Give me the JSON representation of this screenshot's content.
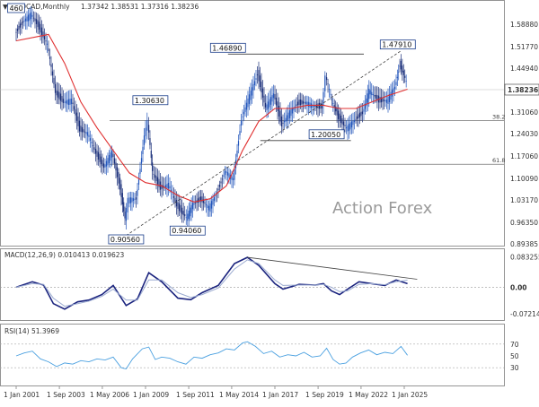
{
  "symbol_header": {
    "symbol": "USDCAD,Monthly",
    "ohlc": "1.37342 1.38531 1.37316 1.38236"
  },
  "watermark": "Action Forex",
  "colors": {
    "bull": "#2255bb",
    "bear": "#1a2f7a",
    "ma": "#e03030",
    "macd": "#1a237e",
    "signal": "#9aaad0",
    "rsi": "#4aa0e0",
    "guide": "#444444"
  },
  "chart_data": [
    {
      "type": "candlestick",
      "name": "price",
      "title": "USDCAD,Monthly",
      "y_ticks": [
        "1.58880",
        "1.51770",
        "1.44940",
        "1.38236",
        "1.31060",
        "1.24030",
        "1.17060",
        "1.10090",
        "1.03170",
        "0.96350",
        "0.89385"
      ],
      "ylim": [
        0.88,
        1.62
      ],
      "current_price": "1.38236",
      "level_labels": [
        {
          "label": "1.46890",
          "x": 2014.1,
          "value": 1.4689
        },
        {
          "label": "1.47910",
          "x": 2024.6,
          "value": 1.4791
        },
        {
          "label": "1.30630",
          "x": 2009.3,
          "value": 1.3063
        },
        {
          "label": "1.20050",
          "x": 2020.2,
          "value": 1.2005
        },
        {
          "label": "0.94060",
          "x": 2011.6,
          "value": 0.9406
        },
        {
          "label": "0.90560",
          "x": 2007.8,
          "value": 0.9056
        },
        {
          "label": "460",
          "x": 2001.0,
          "value": 1.6
        }
      ],
      "horizontal_levels": [
        {
          "value": 1.4689,
          "x_start": 2014.1,
          "x_end": 2022.5
        },
        {
          "value": 1.2005,
          "x_start": 2016.1,
          "x_end": 2021.7
        }
      ],
      "fib_levels": [
        {
          "label": "38.2",
          "value": 1.2628
        },
        {
          "label": "61.8",
          "value": 1.127
        }
      ],
      "trendline": {
        "x_start": 2007.8,
        "y_start": 0.9056,
        "x_end": 2024.8,
        "y_end": 1.479
      },
      "ohlc_points": [
        [
          2001.0,
          1.5321
        ],
        [
          2001.5,
          1.5699
        ],
        [
          2002.0,
          1.5931
        ],
        [
          2002.5,
          1.5504
        ],
        [
          2003.0,
          1.4972
        ],
        [
          2003.5,
          1.3491
        ],
        [
          2004.0,
          1.3197
        ],
        [
          2004.5,
          1.3253
        ],
        [
          2005.0,
          1.2351
        ],
        [
          2005.5,
          1.2223
        ],
        [
          2006.0,
          1.1612
        ],
        [
          2006.5,
          1.1183
        ],
        [
          2007.0,
          1.1652
        ],
        [
          2007.5,
          1.0544
        ],
        [
          2007.8,
          0.9581
        ],
        [
          2008.0,
          1.0174
        ],
        [
          2008.5,
          1.0197
        ],
        [
          2009.0,
          1.2173
        ],
        [
          2009.2,
          1.2598
        ],
        [
          2009.5,
          1.1014
        ],
        [
          2010.0,
          1.0535
        ],
        [
          2010.5,
          1.0638
        ],
        [
          2011.0,
          0.9994
        ],
        [
          2011.6,
          0.9602
        ],
        [
          2012.0,
          1.0037
        ],
        [
          2012.5,
          1.0179
        ],
        [
          2013.0,
          0.9916
        ],
        [
          2013.5,
          1.0404
        ],
        [
          2014.0,
          1.1064
        ],
        [
          2014.5,
          1.0795
        ],
        [
          2015.0,
          1.2675
        ],
        [
          2016.0,
          1.4081
        ],
        [
          2016.5,
          1.3021
        ],
        [
          2017.0,
          1.3441
        ],
        [
          2017.5,
          1.2494
        ],
        [
          2018.0,
          1.2883
        ],
        [
          2018.5,
          1.3156
        ],
        [
          2019.0,
          1.3189
        ],
        [
          2019.5,
          1.3062
        ],
        [
          2020.0,
          1.3049
        ],
        [
          2020.2,
          1.4021
        ],
        [
          2020.6,
          1.3232
        ],
        [
          2021.0,
          1.2723
        ],
        [
          2021.5,
          1.2386
        ],
        [
          2022.0,
          1.2634
        ],
        [
          2022.5,
          1.2865
        ],
        [
          2022.9,
          1.3554
        ],
        [
          2023.5,
          1.3243
        ],
        [
          2024.0,
          1.3245
        ],
        [
          2024.5,
          1.3675
        ],
        [
          2024.8,
          1.4377
        ],
        [
          2025.2,
          1.3823
        ]
      ],
      "ma_points": [
        [
          2001.0,
          1.51
        ],
        [
          2003.0,
          1.53
        ],
        [
          2004.0,
          1.44
        ],
        [
          2005.0,
          1.32
        ],
        [
          2006.0,
          1.24
        ],
        [
          2007.0,
          1.17
        ],
        [
          2008.0,
          1.1
        ],
        [
          2009.0,
          1.07
        ],
        [
          2010.0,
          1.06
        ],
        [
          2011.0,
          1.03
        ],
        [
          2012.0,
          1.01
        ],
        [
          2013.0,
          1.02
        ],
        [
          2014.0,
          1.06
        ],
        [
          2015.0,
          1.17
        ],
        [
          2016.0,
          1.26
        ],
        [
          2017.0,
          1.3
        ],
        [
          2018.0,
          1.3
        ],
        [
          2019.0,
          1.31
        ],
        [
          2020.0,
          1.31
        ],
        [
          2021.0,
          1.3
        ],
        [
          2022.0,
          1.3
        ],
        [
          2023.0,
          1.32
        ],
        [
          2024.0,
          1.34
        ],
        [
          2025.2,
          1.36
        ]
      ]
    },
    {
      "type": "line",
      "name": "macd",
      "title": "MACD(12,26,9) 0.010413 0.019623",
      "y_ticks": [
        "0.083255",
        "0.00",
        "-0.072148"
      ],
      "ylim": [
        -0.085,
        0.092
      ],
      "series": [
        {
          "name": "MACD",
          "points": [
            [
              2001.0,
              0.0
            ],
            [
              2002.0,
              0.015
            ],
            [
              2002.7,
              0.006
            ],
            [
              2003.3,
              -0.045
            ],
            [
              2004.0,
              -0.06
            ],
            [
              2004.8,
              -0.04
            ],
            [
              2005.5,
              -0.035
            ],
            [
              2006.3,
              -0.02
            ],
            [
              2007.0,
              0.005
            ],
            [
              2007.8,
              -0.05
            ],
            [
              2008.5,
              -0.032
            ],
            [
              2009.2,
              0.04
            ],
            [
              2010.0,
              0.015
            ],
            [
              2011.0,
              -0.03
            ],
            [
              2011.8,
              -0.034
            ],
            [
              2012.5,
              -0.015
            ],
            [
              2013.5,
              0.005
            ],
            [
              2014.5,
              0.065
            ],
            [
              2015.3,
              0.082
            ],
            [
              2016.0,
              0.06
            ],
            [
              2017.0,
              0.01
            ],
            [
              2017.5,
              -0.005
            ],
            [
              2018.5,
              0.008
            ],
            [
              2019.5,
              0.006
            ],
            [
              2020.0,
              0.01
            ],
            [
              2020.5,
              -0.01
            ],
            [
              2021.0,
              -0.02
            ],
            [
              2021.5,
              -0.005
            ],
            [
              2022.2,
              0.015
            ],
            [
              2023.0,
              0.01
            ],
            [
              2023.8,
              0.005
            ],
            [
              2024.5,
              0.02
            ],
            [
              2025.2,
              0.01
            ]
          ]
        },
        {
          "name": "Signal",
          "points": [
            [
              2001.0,
              0.0
            ],
            [
              2002.0,
              0.01
            ],
            [
              2002.7,
              0.008
            ],
            [
              2003.3,
              -0.03
            ],
            [
              2004.0,
              -0.052
            ],
            [
              2004.8,
              -0.045
            ],
            [
              2005.5,
              -0.038
            ],
            [
              2006.3,
              -0.025
            ],
            [
              2007.0,
              -0.005
            ],
            [
              2007.8,
              -0.035
            ],
            [
              2008.5,
              -0.035
            ],
            [
              2009.2,
              0.02
            ],
            [
              2010.0,
              0.02
            ],
            [
              2011.0,
              -0.015
            ],
            [
              2011.8,
              -0.028
            ],
            [
              2012.5,
              -0.02
            ],
            [
              2013.5,
              -0.002
            ],
            [
              2014.5,
              0.05
            ],
            [
              2015.3,
              0.075
            ],
            [
              2016.0,
              0.065
            ],
            [
              2017.0,
              0.02
            ],
            [
              2017.5,
              0.005
            ],
            [
              2018.5,
              0.006
            ],
            [
              2019.5,
              0.006
            ],
            [
              2020.0,
              0.008
            ],
            [
              2020.5,
              0.0
            ],
            [
              2021.0,
              -0.012
            ],
            [
              2021.5,
              -0.01
            ],
            [
              2022.2,
              0.008
            ],
            [
              2023.0,
              0.01
            ],
            [
              2023.8,
              0.007
            ],
            [
              2024.5,
              0.015
            ],
            [
              2025.2,
              0.0196
            ]
          ]
        }
      ],
      "trendline": {
        "x_start": 2015.3,
        "y_start": 0.082,
        "x_end": 2025.8,
        "y_end": 0.022
      }
    },
    {
      "type": "line",
      "name": "rsi",
      "title": "RSI(14) 51.3969",
      "y_ticks": [
        "70",
        "50",
        "30"
      ],
      "ylim": [
        0,
        100
      ],
      "guides": [
        70,
        30
      ],
      "series": [
        {
          "name": "RSI",
          "points": [
            [
              2001.0,
              50
            ],
            [
              2001.5,
              55
            ],
            [
              2002.0,
              58
            ],
            [
              2002.5,
              45
            ],
            [
              2003.0,
              40
            ],
            [
              2003.5,
              32
            ],
            [
              2004.0,
              38
            ],
            [
              2004.5,
              36
            ],
            [
              2005.0,
              42
            ],
            [
              2005.5,
              40
            ],
            [
              2006.0,
              45
            ],
            [
              2006.5,
              43
            ],
            [
              2007.0,
              48
            ],
            [
              2007.5,
              30
            ],
            [
              2007.8,
              28
            ],
            [
              2008.2,
              45
            ],
            [
              2008.8,
              62
            ],
            [
              2009.2,
              65
            ],
            [
              2009.6,
              44
            ],
            [
              2010.0,
              48
            ],
            [
              2010.5,
              46
            ],
            [
              2011.0,
              40
            ],
            [
              2011.5,
              36
            ],
            [
              2012.0,
              48
            ],
            [
              2012.5,
              46
            ],
            [
              2013.0,
              52
            ],
            [
              2013.5,
              55
            ],
            [
              2014.0,
              62
            ],
            [
              2014.5,
              60
            ],
            [
              2015.0,
              72
            ],
            [
              2015.3,
              74
            ],
            [
              2015.8,
              66
            ],
            [
              2016.3,
              54
            ],
            [
              2016.8,
              58
            ],
            [
              2017.3,
              48
            ],
            [
              2017.8,
              52
            ],
            [
              2018.3,
              50
            ],
            [
              2018.8,
              56
            ],
            [
              2019.3,
              48
            ],
            [
              2019.8,
              50
            ],
            [
              2020.2,
              63
            ],
            [
              2020.6,
              44
            ],
            [
              2021.0,
              36
            ],
            [
              2021.4,
              38
            ],
            [
              2021.8,
              48
            ],
            [
              2022.3,
              55
            ],
            [
              2022.8,
              60
            ],
            [
              2023.3,
              52
            ],
            [
              2023.8,
              56
            ],
            [
              2024.3,
              54
            ],
            [
              2024.8,
              66
            ],
            [
              2025.2,
              51
            ]
          ]
        }
      ]
    }
  ],
  "x_axis_labels": [
    "1 Jan 2001",
    "1 Sep 2003",
    "1 May 2006",
    "1 Jan 2009",
    "1 Sep 2011",
    "1 May 2014",
    "1 Jan 2017",
    "1 Sep 2019",
    "1 May 2022",
    "1 Jan 2025"
  ]
}
